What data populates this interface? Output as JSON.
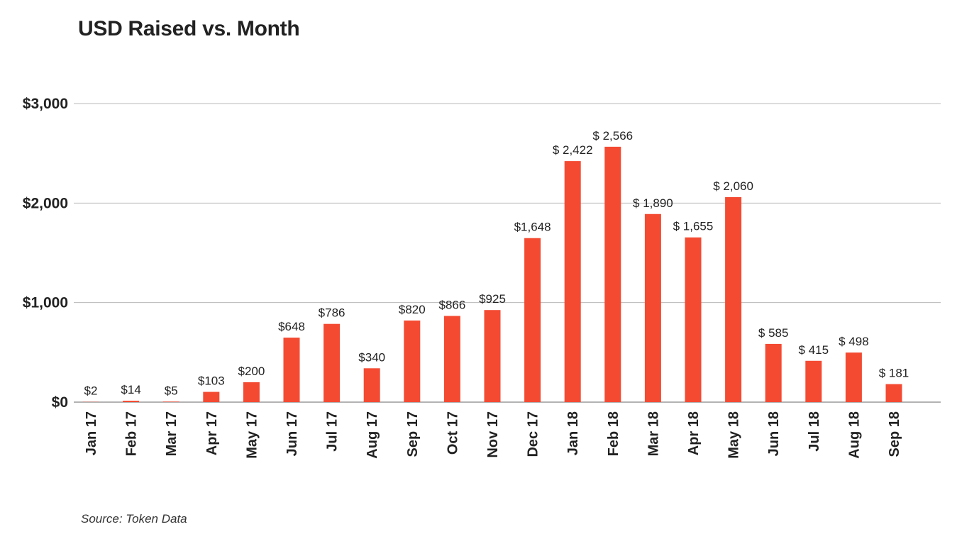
{
  "chart_data": {
    "type": "bar",
    "title": "USD Raised vs. Month",
    "xlabel": "",
    "ylabel": "",
    "ylim": [
      0,
      3000
    ],
    "yticks": [
      0,
      1000,
      2000,
      3000
    ],
    "ytick_labels": [
      "$0",
      "$1,000",
      "$2,000",
      "$3,000"
    ],
    "grid": true,
    "legend": "none",
    "bar_color": "#f44a32",
    "categories": [
      "Jan 17",
      "Feb 17",
      "Mar 17",
      "Apr 17",
      "May 17",
      "Jun 17",
      "Jul 17",
      "Aug 17",
      "Sep 17",
      "Oct 17",
      "Nov 17",
      "Dec 17",
      "Jan 18",
      "Feb 18",
      "Mar 18",
      "Apr 18",
      "May 18",
      "Jun 18",
      "Jul 18",
      "Aug 18",
      "Sep 18"
    ],
    "values": [
      2,
      14,
      5,
      103,
      200,
      648,
      786,
      340,
      820,
      866,
      925,
      1648,
      2422,
      2566,
      1890,
      1655,
      2060,
      585,
      415,
      498,
      181
    ],
    "data_labels": [
      "$2",
      "$14",
      "$5",
      "$103",
      "$200",
      "$648",
      "$786",
      "$340",
      "$820",
      "$866",
      "$925",
      "$1,648",
      "$ 2,422",
      "$ 2,566",
      "$ 1,890",
      "$ 1,655",
      "$ 2,060",
      "$ 585",
      "$ 415",
      "$ 498",
      "$ 181"
    ],
    "source": "Source: Token Data"
  }
}
